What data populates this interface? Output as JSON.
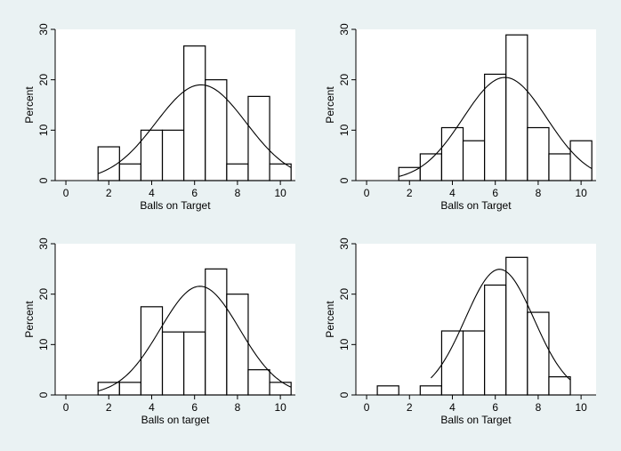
{
  "colors": {
    "figure_background": "#eaf2f3",
    "plot_background": "#ffffff",
    "bar_fill": "#ffffff",
    "bar_stroke": "#000000",
    "curve": "#000000"
  },
  "chart_data": [
    {
      "type": "bar",
      "subtype": "histogram-with-normal-curve",
      "xlabel": "Balls on Target",
      "ylabel": "Percent",
      "xlim": [
        -0.5,
        10.7
      ],
      "ylim": [
        0,
        30
      ],
      "xticks": [
        0,
        2,
        4,
        6,
        8,
        10
      ],
      "yticks": [
        0,
        10,
        20,
        30
      ],
      "bin_width": 1,
      "bins": [
        {
          "x0": 1.5,
          "value": 6.7
        },
        {
          "x0": 2.5,
          "value": 3.3
        },
        {
          "x0": 3.5,
          "value": 10.0
        },
        {
          "x0": 4.5,
          "value": 10.0
        },
        {
          "x0": 5.5,
          "value": 26.7
        },
        {
          "x0": 6.5,
          "value": 20.0
        },
        {
          "x0": 7.5,
          "value": 3.3
        },
        {
          "x0": 8.5,
          "value": 16.7
        },
        {
          "x0": 9.5,
          "value": 3.3
        }
      ],
      "normal_curve": {
        "mean": 6.3,
        "sd": 2.1,
        "x_range": [
          1.5,
          10.5
        ]
      }
    },
    {
      "type": "bar",
      "subtype": "histogram-with-normal-curve",
      "xlabel": "Balls on Target",
      "ylabel": "Percent",
      "xlim": [
        -0.5,
        10.7
      ],
      "ylim": [
        0,
        30
      ],
      "xticks": [
        0,
        2,
        4,
        6,
        8,
        10
      ],
      "yticks": [
        0,
        10,
        20,
        30
      ],
      "bin_width": 1,
      "bins": [
        {
          "x0": 1.5,
          "value": 2.6
        },
        {
          "x0": 2.5,
          "value": 5.3
        },
        {
          "x0": 3.5,
          "value": 10.5
        },
        {
          "x0": 4.5,
          "value": 7.9
        },
        {
          "x0": 5.5,
          "value": 21.1
        },
        {
          "x0": 6.5,
          "value": 28.9
        },
        {
          "x0": 7.5,
          "value": 10.5
        },
        {
          "x0": 8.5,
          "value": 5.3
        },
        {
          "x0": 9.5,
          "value": 7.9
        }
      ],
      "normal_curve": {
        "mean": 6.45,
        "sd": 1.95,
        "x_range": [
          1.5,
          10.5
        ]
      }
    },
    {
      "type": "bar",
      "subtype": "histogram-with-normal-curve",
      "xlabel": "Balls on target",
      "ylabel": "Percent",
      "xlim": [
        -0.5,
        10.7
      ],
      "ylim": [
        0,
        30
      ],
      "xticks": [
        0,
        2,
        4,
        6,
        8,
        10
      ],
      "yticks": [
        0,
        10,
        20,
        30
      ],
      "bin_width": 1,
      "bins": [
        {
          "x0": 1.5,
          "value": 2.5
        },
        {
          "x0": 2.5,
          "value": 2.5
        },
        {
          "x0": 3.5,
          "value": 17.5
        },
        {
          "x0": 4.5,
          "value": 12.5
        },
        {
          "x0": 5.5,
          "value": 12.5
        },
        {
          "x0": 6.5,
          "value": 25.0
        },
        {
          "x0": 7.5,
          "value": 20.0
        },
        {
          "x0": 8.5,
          "value": 5.0
        },
        {
          "x0": 9.5,
          "value": 2.5
        }
      ],
      "normal_curve": {
        "mean": 6.25,
        "sd": 1.85,
        "x_range": [
          1.5,
          10.5
        ]
      }
    },
    {
      "type": "bar",
      "subtype": "histogram-with-normal-curve",
      "xlabel": "Balls on Target",
      "ylabel": "Percent",
      "xlim": [
        -0.5,
        10.7
      ],
      "ylim": [
        0,
        30
      ],
      "xticks": [
        0,
        2,
        4,
        6,
        8,
        10
      ],
      "yticks": [
        0,
        10,
        20,
        30
      ],
      "bin_width": 1,
      "bins": [
        {
          "x0": 0.5,
          "value": 1.8
        },
        {
          "x0": 2.5,
          "value": 1.8
        },
        {
          "x0": 3.5,
          "value": 12.7
        },
        {
          "x0": 4.5,
          "value": 12.7
        },
        {
          "x0": 5.5,
          "value": 21.8
        },
        {
          "x0": 6.5,
          "value": 27.3
        },
        {
          "x0": 7.5,
          "value": 16.4
        },
        {
          "x0": 8.5,
          "value": 3.6
        }
      ],
      "normal_curve": {
        "mean": 6.2,
        "sd": 1.6,
        "x_range": [
          3.0,
          9.5
        ]
      }
    }
  ]
}
